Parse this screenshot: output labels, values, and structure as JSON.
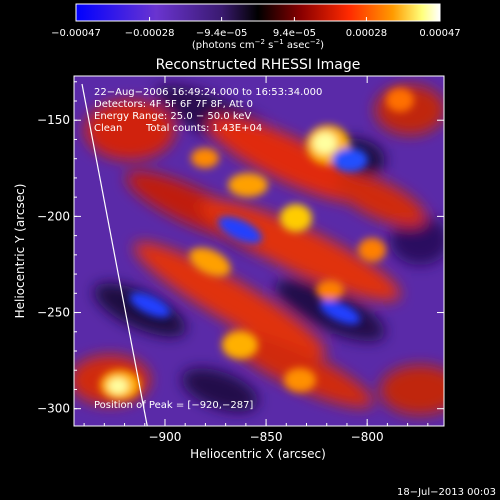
{
  "colorbar": {
    "ticks": [
      "−0.00047",
      "−0.00028",
      "−9.4e−05",
      "9.4e−05",
      "0.00028",
      "0.00047"
    ],
    "tick_values": [
      -0.00047,
      -0.00028,
      -9.4e-05,
      9.4e-05,
      0.00028,
      0.00047
    ],
    "range": [
      -0.00047,
      0.00047
    ],
    "units_prefix": "(photons cm",
    "units_exp1": "−2",
    "units_mid": " s",
    "units_exp2": "−1",
    "units_mid2": " asec",
    "units_exp3": "−2",
    "units_suffix": ")",
    "colors": [
      "#0000ff",
      "#7a3cc8",
      "#5a2ea0",
      "#000000",
      "#8b0000",
      "#ff2200",
      "#ff9900",
      "#ffff88",
      "#ffffff"
    ]
  },
  "title": "Reconstructed RHESSI Image",
  "info": {
    "line1": "22−Aug−2006 16:49:24.000 to 16:53:34.000",
    "line2": "Detectors: 4F 5F 6F 7F 8F, Att 0",
    "line3": "Energy Range: 25.0 − 50.0 keV",
    "line4_a": "Clean",
    "line4_b": "Total counts: 1.43E+04",
    "peak": "Position of Peak = [−920,−287]"
  },
  "axes": {
    "xlabel": "Heliocentric X (arcsec)",
    "ylabel": "Heliocentric Y (arcsec)",
    "xticks": [
      {
        "value": -900,
        "label": "−900"
      },
      {
        "value": -850,
        "label": "−850"
      },
      {
        "value": -800,
        "label": "−800"
      }
    ],
    "yticks": [
      {
        "value": -150,
        "label": "−150"
      },
      {
        "value": -200,
        "label": "−200"
      },
      {
        "value": -250,
        "label": "−250"
      },
      {
        "value": -300,
        "label": "−300"
      }
    ],
    "xlim": [
      -945,
      -762
    ],
    "ylim": [
      -309,
      -127
    ]
  },
  "timestamp": "18−Jul−2013 00:03"
}
